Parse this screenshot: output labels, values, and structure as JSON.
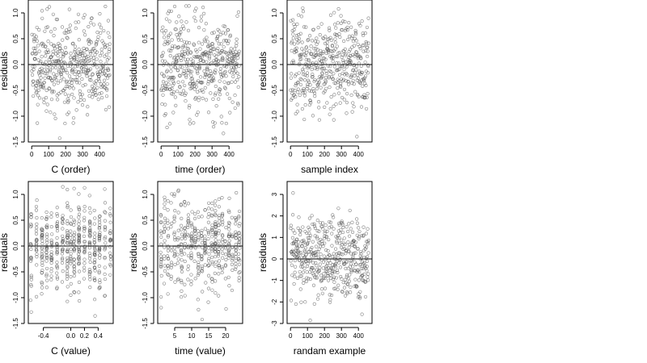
{
  "chart_data": [
    {
      "type": "scatter",
      "xlabel": "C (order)",
      "ylabel": "residuals",
      "xlim": [
        -20,
        480
      ],
      "ylim": [
        -1.5,
        1.25
      ],
      "x_ticks": [
        0,
        100,
        200,
        300,
        400
      ],
      "x_tick_labels": [
        "0",
        "100",
        "200",
        "300",
        "400"
      ],
      "y_ticks": [
        -1.5,
        -1.0,
        -0.5,
        0.0,
        0.5,
        1.0
      ],
      "y_tick_labels": [
        "-1.5",
        "-1.0",
        "-0.5",
        "0.0",
        "0.5",
        "1.0"
      ],
      "reference_line_y": 0,
      "points": {
        "count": 460,
        "x_min": 1,
        "x_max": 460,
        "pattern": "order",
        "y_spread": 0.45,
        "y_min": -1.45,
        "y_max": 1.15,
        "seed": 11
      }
    },
    {
      "type": "scatter",
      "xlabel": "time (order)",
      "ylabel": "residuals",
      "xlim": [
        -20,
        480
      ],
      "ylim": [
        -1.5,
        1.25
      ],
      "x_ticks": [
        0,
        100,
        200,
        300,
        400
      ],
      "x_tick_labels": [
        "0",
        "100",
        "200",
        "300",
        "400"
      ],
      "y_ticks": [
        -1.5,
        -1.0,
        -0.5,
        0.0,
        0.5,
        1.0
      ],
      "y_tick_labels": [
        "-1.5",
        "-1.0",
        "-0.5",
        "0.0",
        "0.5",
        "1.0"
      ],
      "reference_line_y": 0,
      "points": {
        "count": 460,
        "x_min": 1,
        "x_max": 460,
        "pattern": "order",
        "y_spread": 0.45,
        "y_min": -1.45,
        "y_max": 1.15,
        "seed": 23
      }
    },
    {
      "type": "scatter",
      "xlabel": "sample index",
      "ylabel": "residuals",
      "xlim": [
        -20,
        480
      ],
      "ylim": [
        -1.5,
        1.25
      ],
      "x_ticks": [
        0,
        100,
        200,
        300,
        400
      ],
      "x_tick_labels": [
        "0",
        "100",
        "200",
        "300",
        "400"
      ],
      "y_ticks": [
        -1.5,
        -1.0,
        -0.5,
        0.0,
        0.5,
        1.0
      ],
      "y_tick_labels": [
        "-1.5",
        "-1.0",
        "-0.5",
        "0.0",
        "0.5",
        "1.0"
      ],
      "reference_line_y": 0,
      "points": {
        "count": 460,
        "x_min": 1,
        "x_max": 460,
        "pattern": "order",
        "y_spread": 0.45,
        "y_min": -1.45,
        "y_max": 1.15,
        "seed": 37
      }
    },
    {
      "type": "scatter",
      "xlabel": "C (value)",
      "ylabel": "residuals",
      "xlim": [
        -0.62,
        0.62
      ],
      "ylim": [
        -1.5,
        1.25
      ],
      "x_ticks": [
        -0.4,
        0.0,
        0.2,
        0.4
      ],
      "x_tick_labels": [
        "-0.4",
        "0.0",
        "0.2",
        "0.4"
      ],
      "y_ticks": [
        -1.5,
        -1.0,
        -0.5,
        0.0,
        0.5,
        1.0
      ],
      "y_tick_labels": [
        "-1.5",
        "-1.0",
        "-0.5",
        "0.0",
        "0.5",
        "1.0"
      ],
      "reference_line_y": 0,
      "points": {
        "count": 460,
        "pattern": "levels",
        "levels": [
          -0.58,
          -0.5,
          -0.42,
          -0.35,
          -0.28,
          -0.2,
          -0.12,
          -0.05,
          0.0,
          0.05,
          0.12,
          0.2,
          0.28,
          0.35,
          0.42,
          0.5,
          0.58
        ],
        "jitter": 0.006,
        "y_spread": 0.45,
        "y_min": -1.45,
        "y_max": 1.15,
        "seed": 53
      }
    },
    {
      "type": "scatter",
      "xlabel": "time (value)",
      "ylabel": "residuals",
      "xlim": [
        0,
        25
      ],
      "ylim": [
        -1.5,
        1.25
      ],
      "x_ticks": [
        5,
        10,
        15,
        20
      ],
      "x_tick_labels": [
        "5",
        "10",
        "15",
        "20"
      ],
      "y_ticks": [
        -1.5,
        -1.0,
        -0.5,
        0.0,
        0.5,
        1.0
      ],
      "y_tick_labels": [
        "-1.5",
        "-1.0",
        "-0.5",
        "0.0",
        "0.5",
        "1.0"
      ],
      "reference_line_y": 0,
      "points": {
        "count": 460,
        "pattern": "levels",
        "levels": [
          1,
          2,
          3,
          4,
          5,
          6,
          7,
          8,
          9,
          10,
          11,
          12,
          13,
          14,
          15,
          16,
          17,
          18,
          19,
          20,
          21,
          22,
          23,
          24
        ],
        "jitter": 0.15,
        "y_spread": 0.45,
        "y_min": -1.45,
        "y_max": 1.15,
        "seed": 71
      }
    },
    {
      "type": "scatter",
      "xlabel": "randam example",
      "ylabel": "residuals",
      "xlim": [
        -20,
        480
      ],
      "ylim": [
        -3,
        3.6
      ],
      "x_ticks": [
        0,
        100,
        200,
        300,
        400
      ],
      "x_tick_labels": [
        "0",
        "100",
        "200",
        "300",
        "400"
      ],
      "y_ticks": [
        -3,
        -2,
        -1,
        0,
        1,
        2,
        3
      ],
      "y_tick_labels": [
        "-3",
        "-2",
        "-1",
        "0",
        "1",
        "2",
        "3"
      ],
      "reference_line_y": 0,
      "points": {
        "count": 460,
        "x_min": 1,
        "x_max": 460,
        "pattern": "order",
        "y_spread": 1.0,
        "y_min": -2.9,
        "y_max": 3.3,
        "seed": 97
      }
    }
  ]
}
